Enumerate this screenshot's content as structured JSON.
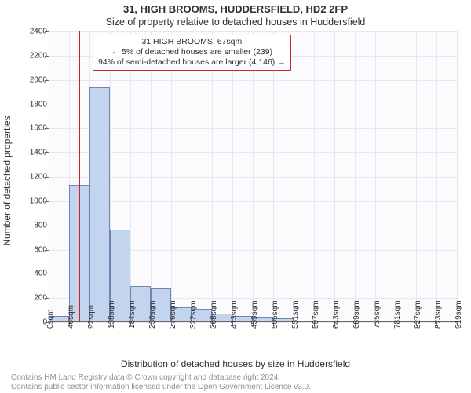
{
  "header": {
    "address_line": "31, HIGH BROOMS, HUDDERSFIELD, HD2 2FP",
    "subtitle": "Size of property relative to detached houses in Huddersfield"
  },
  "axes": {
    "ylabel": "Number of detached properties",
    "xlabel": "Distribution of detached houses by size in Huddersfield"
  },
  "footer": {
    "line1": "Contains HM Land Registry data © Crown copyright and database right 2024.",
    "line2": "Contains public sector information licensed under the Open Government Licence v3.0."
  },
  "chart": {
    "type": "histogram",
    "plot_bg": "#fbfbfd",
    "grid_color": "#e6e8f0",
    "axis_color": "#6a6a6a",
    "bar_fill": "#c3d4ef",
    "bar_stroke": "#6f86b0",
    "marker_color": "#d02020",
    "y": {
      "min": 0,
      "max": 2400,
      "step": 200
    },
    "x": {
      "tick_labels": [
        "0sqm",
        "46sqm",
        "92sqm",
        "138sqm",
        "184sqm",
        "230sqm",
        "276sqm",
        "322sqm",
        "368sqm",
        "413sqm",
        "459sqm",
        "505sqm",
        "551sqm",
        "597sqm",
        "643sqm",
        "689sqm",
        "735sqm",
        "781sqm",
        "827sqm",
        "873sqm",
        "919sqm"
      ]
    },
    "bars": [
      55,
      1130,
      1937,
      765,
      300,
      280,
      125,
      110,
      70,
      50,
      45,
      30,
      0,
      0,
      0,
      0,
      0,
      0,
      0,
      0
    ],
    "marker_bin_index": 1,
    "marker_fraction_in_bin": 0.46,
    "annotation": {
      "l1": "31 HIGH BROOMS: 67sqm",
      "l2": "← 5% of detached houses are smaller (239)",
      "l3": "94% of semi-detached houses are larger (4,146) →"
    }
  }
}
